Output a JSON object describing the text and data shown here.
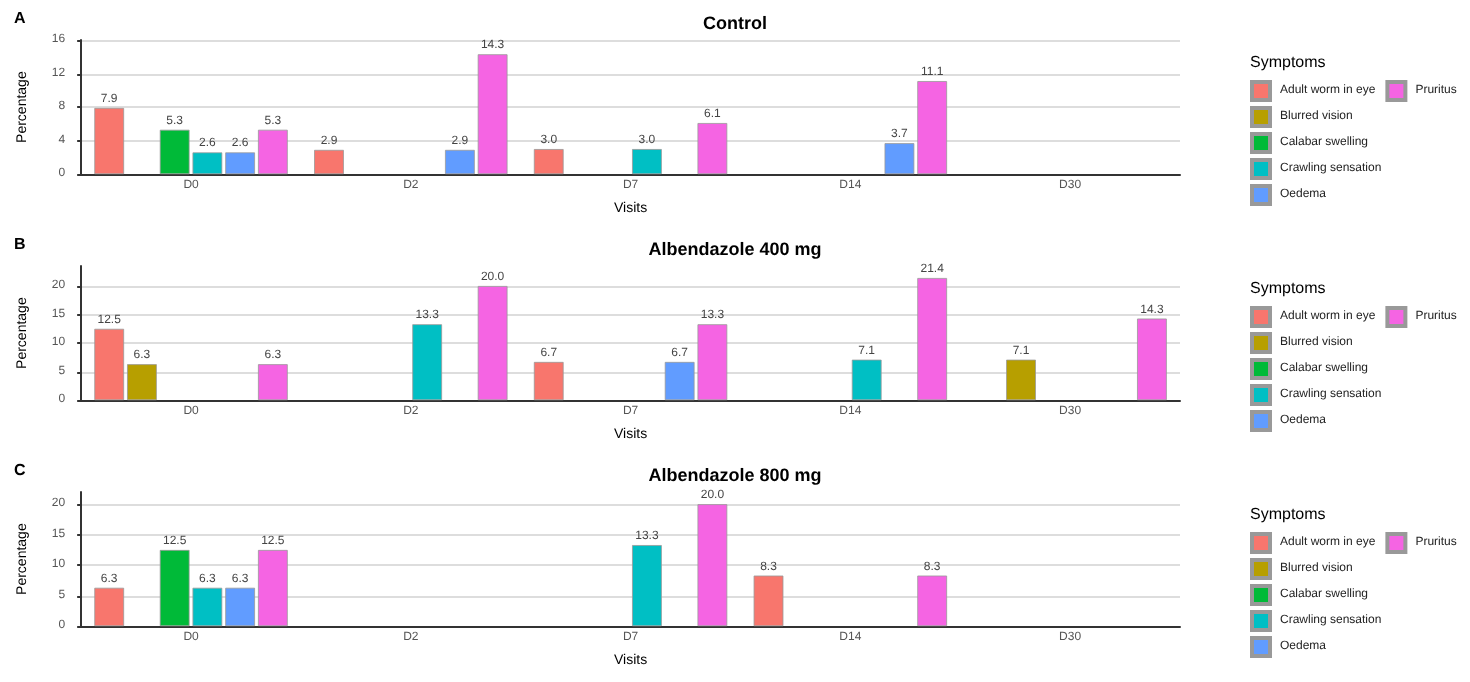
{
  "chart_data": [
    {
      "type": "bar",
      "title": "Control",
      "annotations": [
        "A"
      ],
      "xlabel": "Visits",
      "ylabel": "Percentage",
      "legend_title": "Symptoms",
      "legend": "right",
      "grid": "y",
      "categories": [
        "D0",
        "D2",
        "D7",
        "D14",
        "D30"
      ],
      "ylim": [
        0,
        16
      ],
      "yticks": [
        0,
        4,
        8,
        12,
        16
      ],
      "series": [
        {
          "name": "Adult worm in eye",
          "color": "#f8766d",
          "values": [
            7.9,
            2.9,
            3.0,
            null,
            null
          ],
          "value_labels": [
            "7.9",
            "2.9",
            "3.0",
            null,
            null
          ]
        },
        {
          "name": "Blurred vision",
          "color": "#b79f00",
          "values": [
            null,
            null,
            null,
            null,
            null
          ],
          "value_labels": [
            null,
            null,
            null,
            null,
            null
          ]
        },
        {
          "name": "Calabar swelling",
          "color": "#00ba38",
          "values": [
            5.3,
            null,
            null,
            null,
            null
          ],
          "value_labels": [
            "5.3",
            null,
            null,
            null,
            null
          ]
        },
        {
          "name": "Crawling sensation",
          "color": "#00bfc4",
          "values": [
            2.6,
            null,
            3.0,
            null,
            null
          ],
          "value_labels": [
            "2.6",
            null,
            "3.0",
            null,
            null
          ]
        },
        {
          "name": "Oedema",
          "color": "#619cff",
          "values": [
            2.6,
            2.9,
            null,
            3.7,
            null
          ],
          "value_labels": [
            "2.6",
            "2.9",
            null,
            "3.7",
            null
          ]
        },
        {
          "name": "Pruritus",
          "color": "#f564e3",
          "values": [
            5.3,
            14.3,
            6.1,
            11.1,
            null
          ],
          "value_labels": [
            "5.3",
            "14.3",
            "6.1",
            "11.1",
            null
          ]
        }
      ]
    },
    {
      "type": "bar",
      "title": "Albendazole 400 mg",
      "annotations": [
        "B"
      ],
      "xlabel": "Visits",
      "ylabel": "Percentage",
      "legend_title": "Symptoms",
      "legend": "right",
      "grid": "y",
      "categories": [
        "D0",
        "D2",
        "D7",
        "D14",
        "D30"
      ],
      "ylim": [
        0,
        23.5
      ],
      "yticks": [
        0,
        5,
        10,
        15,
        20
      ],
      "series": [
        {
          "name": "Adult worm in eye",
          "color": "#f8766d",
          "values": [
            12.5,
            null,
            6.7,
            null,
            null
          ],
          "value_labels": [
            "12.5",
            null,
            "6.7",
            null,
            null
          ]
        },
        {
          "name": "Blurred vision",
          "color": "#b79f00",
          "values": [
            6.3,
            null,
            null,
            null,
            7.1
          ],
          "value_labels": [
            "6.3",
            null,
            null,
            null,
            "7.1"
          ]
        },
        {
          "name": "Calabar swelling",
          "color": "#00ba38",
          "values": [
            null,
            null,
            null,
            null,
            null
          ],
          "value_labels": [
            null,
            null,
            null,
            null,
            null
          ]
        },
        {
          "name": "Crawling sensation",
          "color": "#00bfc4",
          "values": [
            null,
            13.3,
            null,
            7.1,
            null
          ],
          "value_labels": [
            null,
            "13.3",
            null,
            "7.1",
            null
          ]
        },
        {
          "name": "Oedema",
          "color": "#619cff",
          "values": [
            null,
            null,
            6.7,
            null,
            null
          ],
          "value_labels": [
            null,
            null,
            "6.7",
            null,
            null
          ]
        },
        {
          "name": "Pruritus",
          "color": "#f564e3",
          "values": [
            6.3,
            20.0,
            13.3,
            21.4,
            14.3
          ],
          "value_labels": [
            "6.3",
            "20.0",
            "13.3",
            "21.4",
            "14.3"
          ]
        }
      ]
    },
    {
      "type": "bar",
      "title": "Albendazole 800 mg",
      "annotations": [
        "C"
      ],
      "xlabel": "Visits",
      "ylabel": "Percentage",
      "legend_title": "Symptoms",
      "legend": "right",
      "grid": "y",
      "categories": [
        "D0",
        "D2",
        "D7",
        "D14",
        "D30"
      ],
      "ylim": [
        0,
        22
      ],
      "yticks": [
        0,
        5,
        10,
        15,
        20
      ],
      "series": [
        {
          "name": "Adult worm in eye",
          "color": "#f8766d",
          "values": [
            6.3,
            null,
            null,
            8.3,
            null
          ],
          "value_labels": [
            "6.3",
            null,
            null,
            "8.3",
            null
          ]
        },
        {
          "name": "Blurred vision",
          "color": "#b79f00",
          "values": [
            null,
            null,
            null,
            null,
            null
          ],
          "value_labels": [
            null,
            null,
            null,
            null,
            null
          ]
        },
        {
          "name": "Calabar swelling",
          "color": "#00ba38",
          "values": [
            12.5,
            null,
            null,
            null,
            null
          ],
          "value_labels": [
            "12.5",
            null,
            null,
            null,
            null
          ]
        },
        {
          "name": "Crawling sensation",
          "color": "#00bfc4",
          "values": [
            6.3,
            null,
            13.3,
            null,
            null
          ],
          "value_labels": [
            "6.3",
            null,
            "13.3",
            null,
            null
          ]
        },
        {
          "name": "Oedema",
          "color": "#619cff",
          "values": [
            6.3,
            null,
            null,
            null,
            null
          ],
          "value_labels": [
            "6.3",
            null,
            null,
            null,
            null
          ]
        },
        {
          "name": "Pruritus",
          "color": "#f564e3",
          "values": [
            12.5,
            null,
            20.0,
            8.3,
            null
          ],
          "value_labels": [
            "12.5",
            null,
            "20.0",
            "8.3",
            null
          ]
        }
      ]
    }
  ]
}
